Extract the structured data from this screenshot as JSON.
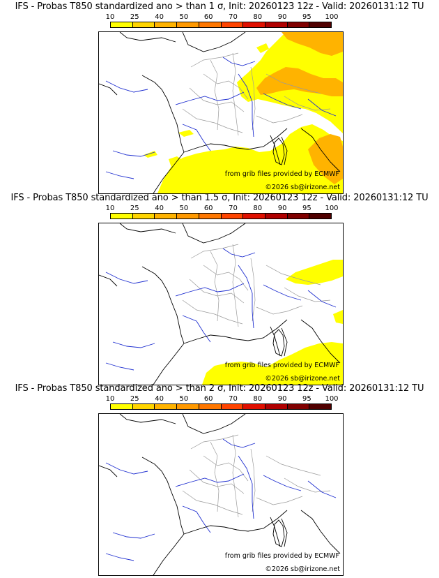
{
  "scale": {
    "labels": [
      "10",
      "25",
      "40",
      "50",
      "60",
      "70",
      "80",
      "90",
      "95",
      "100"
    ],
    "colors": [
      "#ffff00",
      "#ffd500",
      "#ffb300",
      "#ff9900",
      "#ff7700",
      "#ff4400",
      "#e01000",
      "#b00000",
      "#800000",
      "#500000"
    ]
  },
  "panels": [
    {
      "title": "IFS - Probas T850  standardized ano > than 1 σ, Init: 20260123 12z - Valid: 20260131:12 TU",
      "source_credit": "from grib files provided by ECMWF",
      "copyright": "©2026 sb@irizone.net"
    },
    {
      "title": "IFS - Probas T850  standardized ano > than 1.5 σ, Init: 20260123 12z - Valid: 20260131:12 TU",
      "source_credit": "from grib files provided by ECMWF",
      "copyright": "©2026 sb@irizone.net"
    },
    {
      "title": "IFS - Probas T850  standardized ano > than 2 σ, Init: 20260123 12z - Valid: 20260131:12 TU",
      "source_credit": "from grib files provided by ECMWF",
      "copyright": "©2026 sb@irizone.net"
    }
  ],
  "colors": {
    "coast": "#000000",
    "rivers": "#1f2fd0",
    "borders": "#9a9a9a"
  }
}
